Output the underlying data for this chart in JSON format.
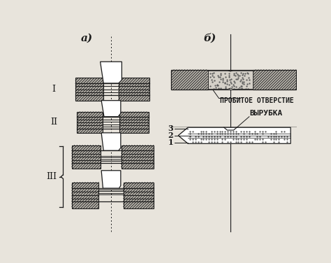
{
  "bg_color": "#e8e4dc",
  "line_color": "#1a1a1a",
  "label_a": "a)",
  "label_b": "б)",
  "label_I": "I",
  "label_II": "II",
  "label_III": "III",
  "text_probite": "ПРОБИТОЕ ОТВЕРСТИЕ",
  "text_vyrubka": "ВЫРУБКА",
  "label_1": "1",
  "label_2": "2",
  "label_3": "3",
  "hatch_bg": "#b8b4ac"
}
